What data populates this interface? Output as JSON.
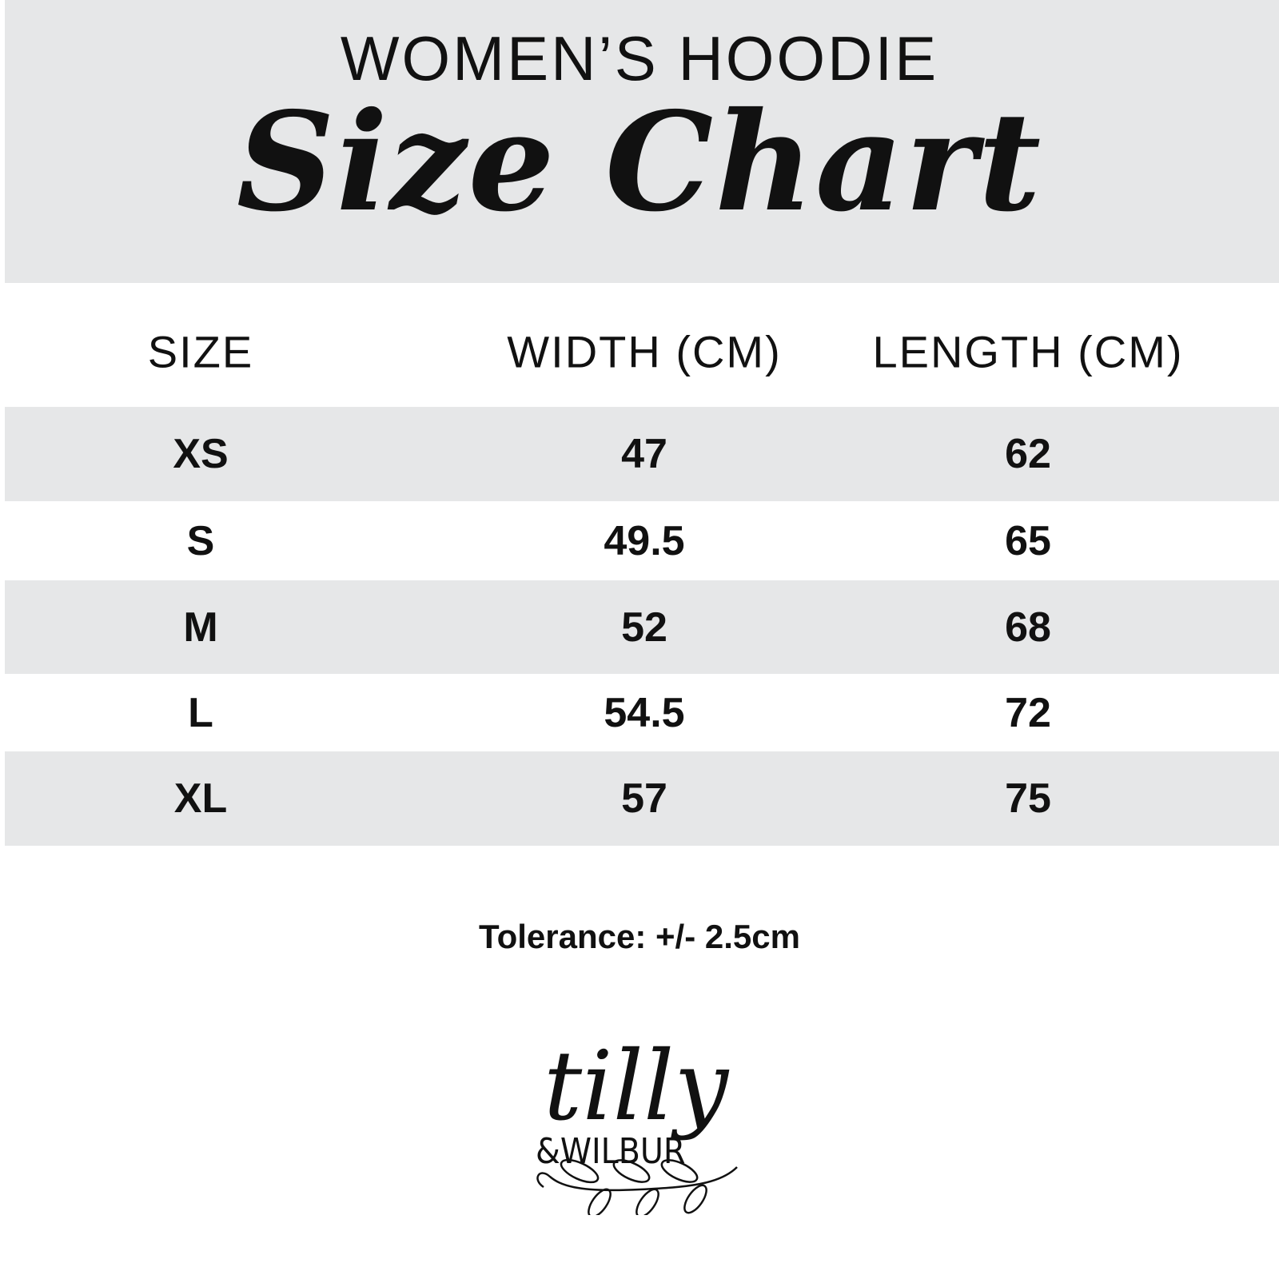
{
  "header": {
    "subtitle": "WOMEN’S HOODIE",
    "title": "Size Chart"
  },
  "table": {
    "columns": [
      "SIZE",
      "WIDTH (CM)",
      "LENGTH (CM)"
    ],
    "rows": [
      [
        "XS",
        "47",
        "62"
      ],
      [
        "S",
        "49.5",
        "65"
      ],
      [
        "M",
        "52",
        "68"
      ],
      [
        "L",
        "54.5",
        "72"
      ],
      [
        "XL",
        "57",
        "75"
      ]
    ]
  },
  "footer": {
    "tolerance": "Tolerance: +/- 2.5cm"
  },
  "logo": {
    "text": "tilly & WILBUR"
  },
  "colors": {
    "band": "#e6e7e8",
    "text": "#111111"
  }
}
